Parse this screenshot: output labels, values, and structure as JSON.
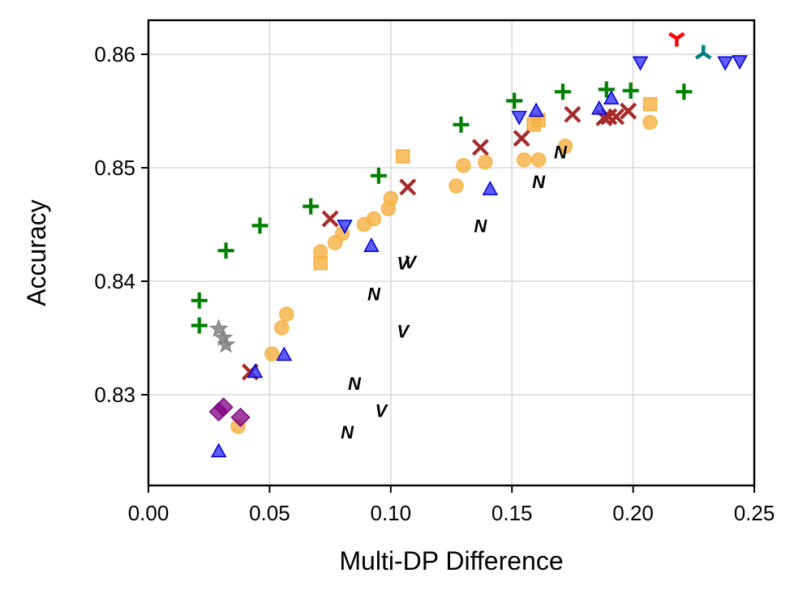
{
  "chart_data": {
    "type": "scatter",
    "title": "",
    "xlabel": "Multi-DP Difference",
    "ylabel": "Accuracy",
    "xlim": [
      0.0,
      0.25
    ],
    "ylim": [
      0.822,
      0.863
    ],
    "xticks": [
      "0.00",
      "0.05",
      "0.10",
      "0.15",
      "0.20",
      "0.25"
    ],
    "yticks": [
      "0.83",
      "0.84",
      "0.85",
      "0.86"
    ],
    "grid": true,
    "legend": "none",
    "series": [
      {
        "marker": "plus",
        "color": "#008000",
        "points": [
          [
            0.021,
            0.8383
          ],
          [
            0.021,
            0.8361
          ],
          [
            0.032,
            0.8427
          ],
          [
            0.046,
            0.8449
          ],
          [
            0.067,
            0.8466
          ],
          [
            0.095,
            0.8493
          ],
          [
            0.129,
            0.8538
          ],
          [
            0.151,
            0.8559
          ],
          [
            0.171,
            0.8567
          ],
          [
            0.189,
            0.8569
          ],
          [
            0.199,
            0.8568
          ],
          [
            0.221,
            0.8567
          ]
        ]
      },
      {
        "marker": "circle",
        "color": "#f5b041",
        "points": [
          [
            0.037,
            0.8272
          ],
          [
            0.051,
            0.8336
          ],
          [
            0.055,
            0.8359
          ],
          [
            0.057,
            0.8371
          ],
          [
            0.071,
            0.8426
          ],
          [
            0.077,
            0.8434
          ],
          [
            0.08,
            0.8442
          ],
          [
            0.089,
            0.845
          ],
          [
            0.093,
            0.8455
          ],
          [
            0.099,
            0.8464
          ],
          [
            0.1,
            0.8473
          ],
          [
            0.127,
            0.8484
          ],
          [
            0.13,
            0.8502
          ],
          [
            0.139,
            0.8505
          ],
          [
            0.155,
            0.8507
          ],
          [
            0.161,
            0.8507
          ],
          [
            0.172,
            0.8519
          ],
          [
            0.207,
            0.854
          ]
        ]
      },
      {
        "marker": "square",
        "color": "#f5b041",
        "points": [
          [
            0.071,
            0.8416
          ],
          [
            0.105,
            0.851
          ],
          [
            0.159,
            0.8538
          ],
          [
            0.161,
            0.8542
          ],
          [
            0.207,
            0.8556
          ]
        ]
      },
      {
        "marker": "x",
        "color": "#a52a2a",
        "points": [
          [
            0.042,
            0.832
          ],
          [
            0.075,
            0.8455
          ],
          [
            0.107,
            0.8483
          ],
          [
            0.137,
            0.8518
          ],
          [
            0.154,
            0.8526
          ],
          [
            0.175,
            0.8547
          ],
          [
            0.188,
            0.8544
          ],
          [
            0.19,
            0.8545
          ],
          [
            0.193,
            0.8545
          ],
          [
            0.198,
            0.855
          ]
        ]
      },
      {
        "marker": "triangle-up",
        "color": "#3333ff",
        "points": [
          [
            0.029,
            0.825
          ],
          [
            0.044,
            0.832
          ],
          [
            0.056,
            0.8335
          ],
          [
            0.092,
            0.8431
          ],
          [
            0.141,
            0.8481
          ],
          [
            0.16,
            0.855
          ],
          [
            0.186,
            0.8552
          ],
          [
            0.191,
            0.8561
          ]
        ]
      },
      {
        "marker": "triangle-down",
        "color": "#3333ff",
        "points": [
          [
            0.081,
            0.8449
          ],
          [
            0.153,
            0.8545
          ],
          [
            0.203,
            0.8593
          ],
          [
            0.238,
            0.8593
          ],
          [
            0.244,
            0.8594
          ]
        ]
      },
      {
        "marker": "diamond",
        "color": "#800080",
        "points": [
          [
            0.029,
            0.8285
          ],
          [
            0.031,
            0.8289
          ],
          [
            0.038,
            0.828
          ]
        ]
      },
      {
        "marker": "star",
        "color": "#808080",
        "points": [
          [
            0.029,
            0.8358
          ],
          [
            0.031,
            0.835
          ],
          [
            0.032,
            0.8344
          ]
        ]
      },
      {
        "marker": "glyph",
        "glyph": "N",
        "color": "#9b30d9",
        "points": [
          [
            0.082,
            0.8267
          ],
          [
            0.085,
            0.831
          ],
          [
            0.093,
            0.8389
          ],
          [
            0.137,
            0.8449
          ],
          [
            0.161,
            0.8488
          ],
          [
            0.17,
            0.8514
          ]
        ]
      },
      {
        "marker": "glyph",
        "glyph": "V",
        "color": "#2e7d32",
        "points": [
          [
            0.096,
            0.8286
          ],
          [
            0.105,
            0.8356
          ],
          [
            0.105,
            0.8416
          ],
          [
            0.108,
            0.8417
          ]
        ]
      },
      {
        "marker": "tri-down",
        "color": "#ff0000",
        "points": [
          [
            0.218,
            0.8614
          ]
        ]
      },
      {
        "marker": "tri-up",
        "color": "#008080",
        "points": [
          [
            0.229,
            0.8601
          ]
        ]
      }
    ]
  }
}
